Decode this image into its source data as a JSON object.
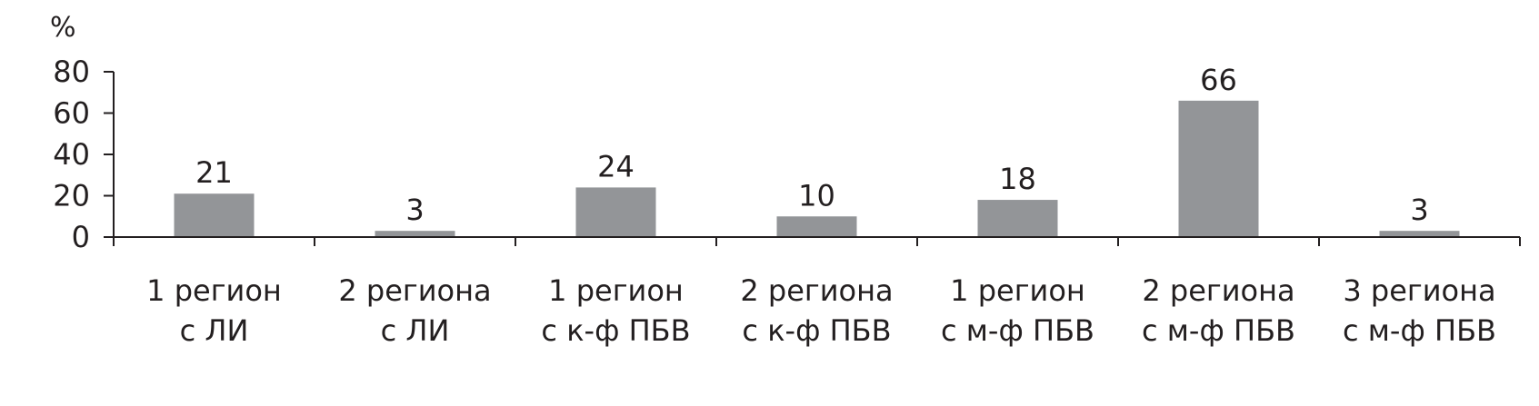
{
  "chart_data": {
    "type": "bar",
    "ylabel": "%",
    "ylim": [
      0,
      80
    ],
    "yticks": [
      0,
      20,
      40,
      60,
      80
    ],
    "grid": false,
    "legend": "none",
    "bar_color": "#939598",
    "categories": [
      [
        "1 регион",
        "с ЛИ"
      ],
      [
        "2 региона",
        "с ЛИ"
      ],
      [
        "1 регион",
        "с к-ф ПБВ"
      ],
      [
        "2 региона",
        "с к-ф ПБВ"
      ],
      [
        "1 регион",
        "с м-ф ПБВ"
      ],
      [
        "2 региона",
        "с м-ф ПБВ"
      ],
      [
        "3 региона",
        "с м-ф ПБВ"
      ]
    ],
    "values": [
      21,
      3,
      24,
      10,
      18,
      66,
      3
    ],
    "data_labels": [
      "21",
      "3",
      "24",
      "10",
      "18",
      "66",
      "3"
    ]
  }
}
